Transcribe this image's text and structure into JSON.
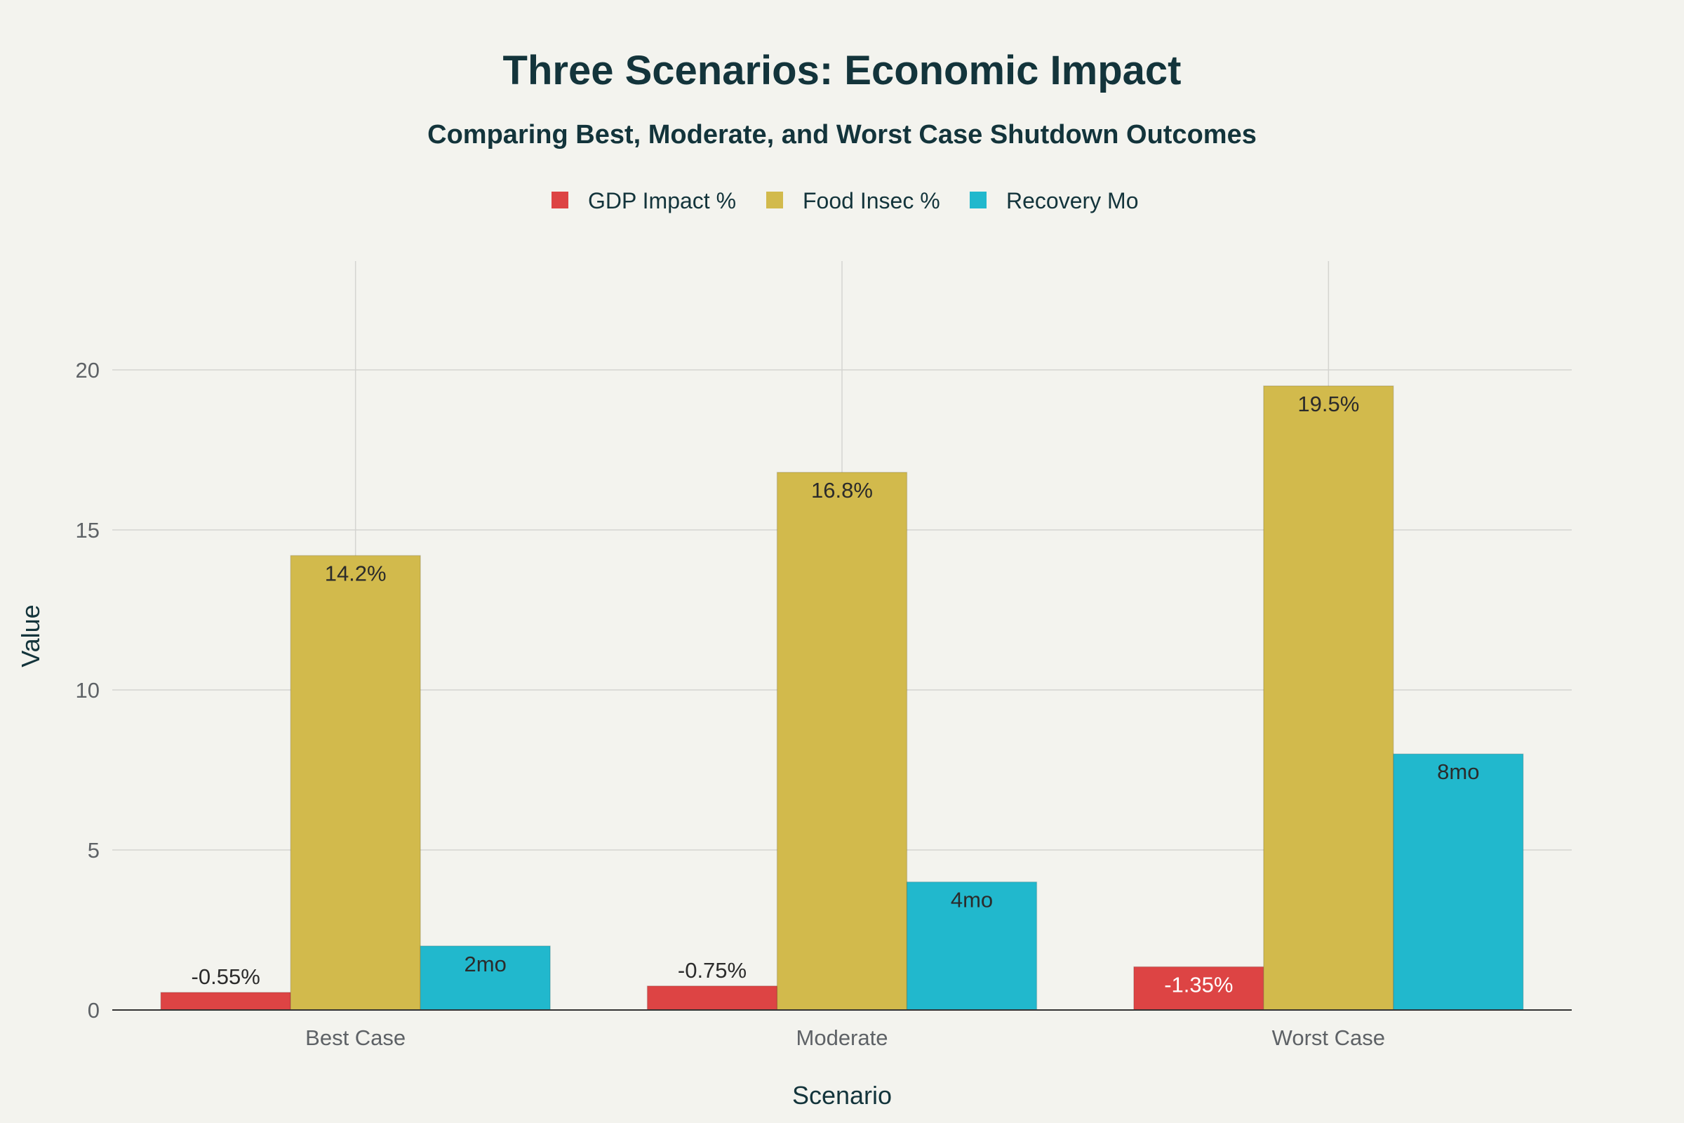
{
  "chart_data": {
    "type": "bar",
    "title": "Three Scenarios: Economic Impact",
    "subtitle": "Comparing Best, Moderate, and Worst Case Shutdown Outcomes",
    "xlabel": "Scenario",
    "ylabel": "Value",
    "categories": [
      "Best Case",
      "Moderate",
      "Worst Case"
    ],
    "ylim": [
      0,
      23.4
    ],
    "yticks": [
      0,
      5,
      10,
      15,
      20
    ],
    "grid": true,
    "legend_position": "top-center",
    "series": [
      {
        "name": "GDP Impact %",
        "color": "#dd4444",
        "values": [
          0.55,
          0.75,
          1.35
        ],
        "labels": [
          "-0.55%",
          "-0.75%",
          "-1.35%"
        ]
      },
      {
        "name": "Food Insec %",
        "color": "#d2ba4c",
        "values": [
          14.2,
          16.8,
          19.5
        ],
        "labels": [
          "14.2%",
          "16.8%",
          "19.5%"
        ]
      },
      {
        "name": "Recovery Mo",
        "color": "#21b8cd",
        "values": [
          2,
          4,
          8
        ],
        "labels": [
          "2mo",
          "4mo",
          "8mo"
        ]
      }
    ]
  }
}
